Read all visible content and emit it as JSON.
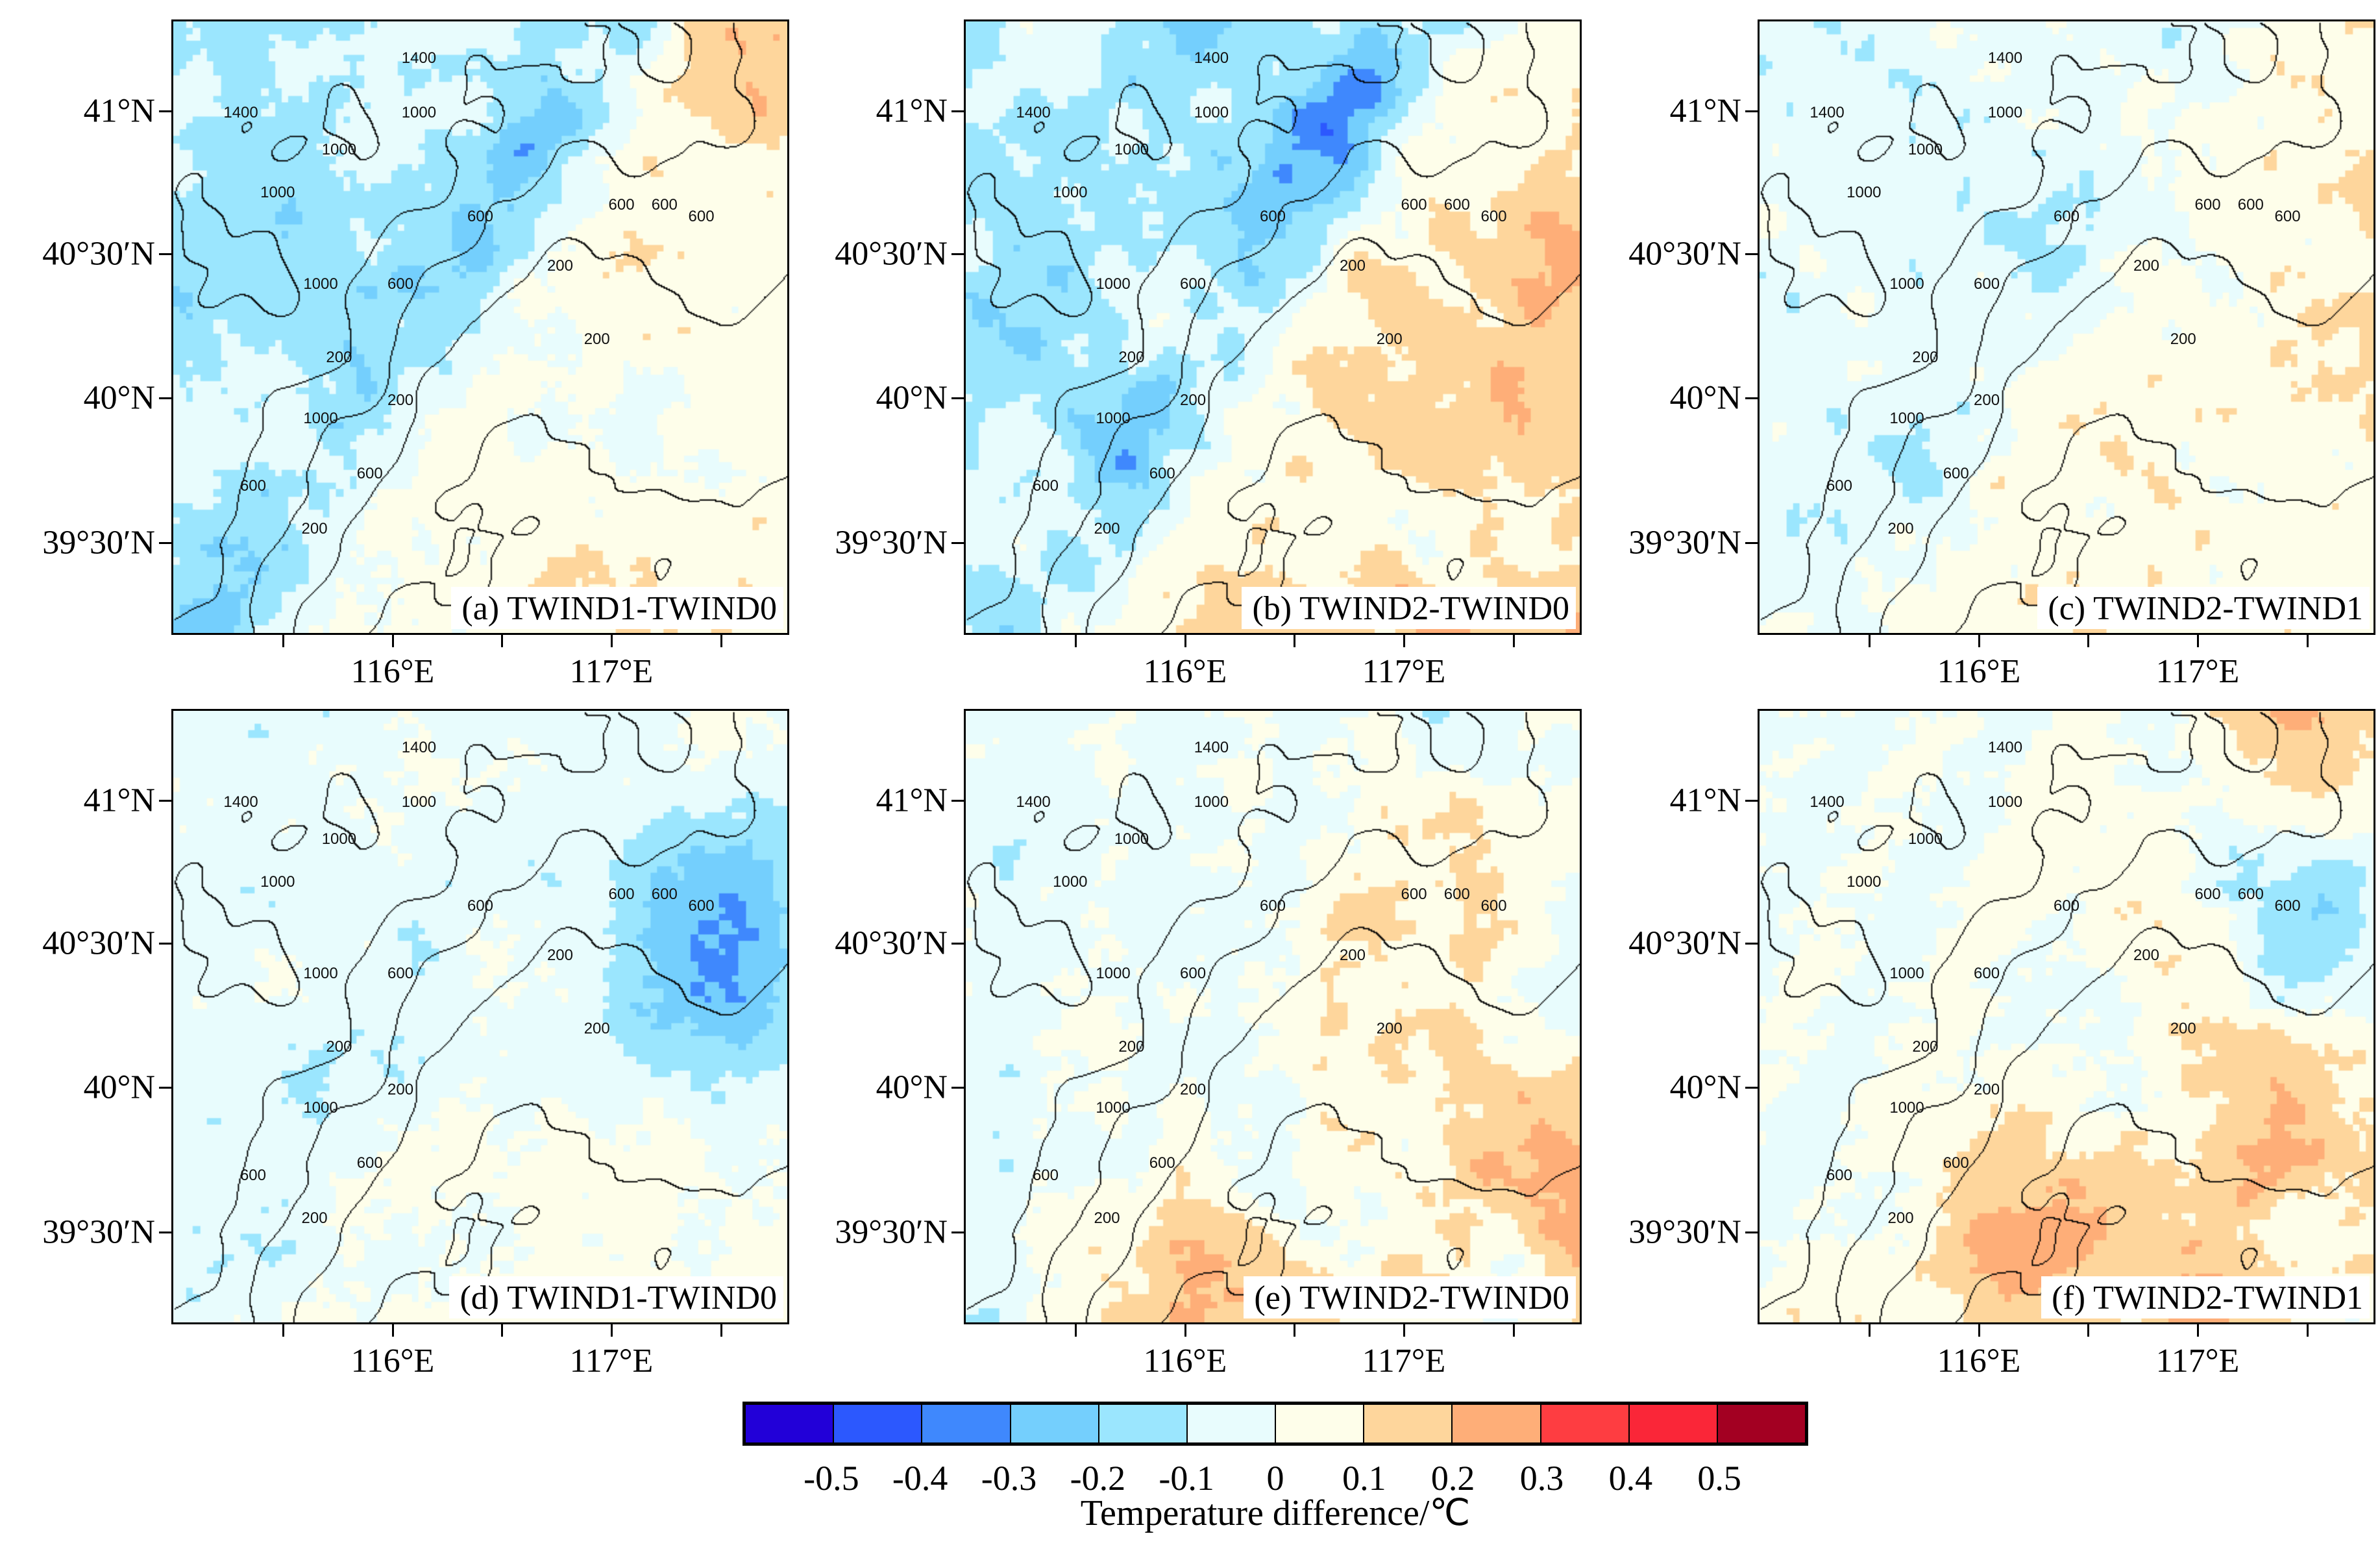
{
  "chart_data": {
    "type": "heatmap",
    "panels": [
      {
        "id": "a",
        "title": "(a) TWIND1-TWIND0"
      },
      {
        "id": "b",
        "title": "(b) TWIND2-TWIND0"
      },
      {
        "id": "c",
        "title": "(c) TWIND2-TWIND1"
      },
      {
        "id": "d",
        "title": "(d) TWIND1-TWIND0"
      },
      {
        "id": "e",
        "title": "(e) TWIND2-TWIND0"
      },
      {
        "id": "f",
        "title": "(f) TWIND2-TWIND1"
      }
    ],
    "y_ticks": [
      "41°N",
      "40°30′N",
      "40°N",
      "39°30′N"
    ],
    "y_tick_values": [
      41.0,
      40.5,
      40.0,
      39.5
    ],
    "x_ticks": [
      "116°E",
      "117°E"
    ],
    "x_tick_values": [
      116.0,
      117.0
    ],
    "contour_levels": [
      200,
      600,
      1000,
      1400
    ],
    "contour_labels": [
      "1400",
      "1400",
      "1000",
      "1000",
      "1000",
      "1000",
      "600",
      "600",
      "600",
      "600",
      "200",
      "200",
      "200",
      "600",
      "200",
      "1000",
      "600",
      "600",
      "200"
    ],
    "colorbar": {
      "title": "Temperature difference/℃",
      "levels": [
        "-0.5",
        "-0.4",
        "-0.3",
        "-0.2",
        "-0.1",
        "0",
        "0.1",
        "0.2",
        "0.3",
        "0.4",
        "0.5"
      ],
      "colors": [
        "#2200d8",
        "#2c58fe",
        "#3f88fd",
        "#74cffd",
        "#9be6fe",
        "#e8fcfd",
        "#fefeea",
        "#fed69c",
        "#feae78",
        "#fe3d41",
        "#fa2638",
        "#a30022"
      ]
    }
  }
}
